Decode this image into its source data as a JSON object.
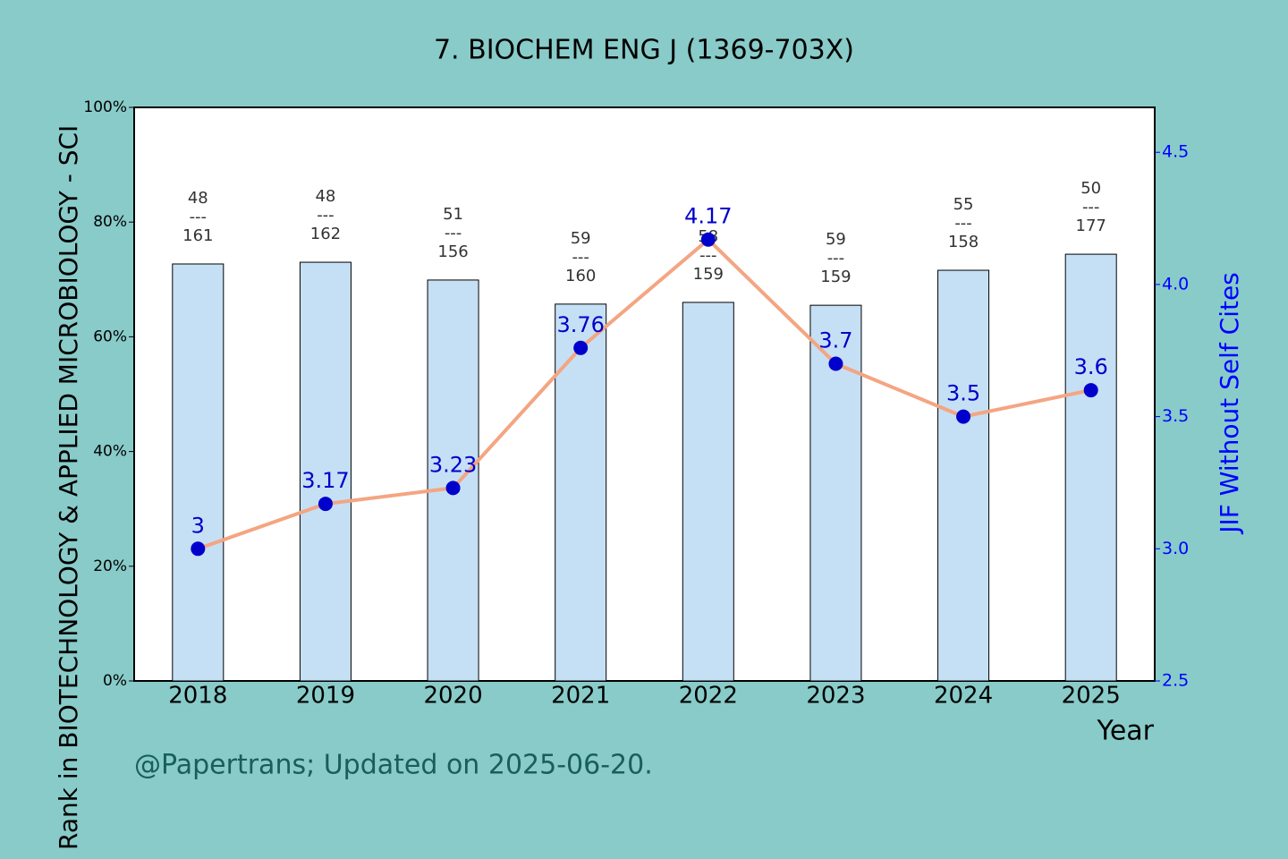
{
  "chart_data": {
    "type": "bar_line",
    "title": "7. BIOCHEM ENG J (1369-703X)",
    "y_label": "Rank in BIOTECHNOLOGY & APPLIED MICROBIOLOGY - SCI",
    "y2_label": "JIF Without Self Cites",
    "x_label": "Year",
    "footer": "@Papertrans; Updated on 2025-06-20.",
    "categories": [
      "2018",
      "2019",
      "2020",
      "2021",
      "2022",
      "2023",
      "2024",
      "2025"
    ],
    "series": [
      {
        "color": "#c5e0f5",
        "values": [
          72.7,
          73.0,
          69.9,
          65.7,
          66.0,
          65.5,
          71.6,
          74.4
        ],
        "ranks": [
          48,
          48,
          51,
          59,
          58,
          59,
          55,
          50
        ],
        "totals": [
          161,
          162,
          156,
          160,
          159,
          159,
          158,
          177
        ]
      },
      {
        "color": "#f4a582",
        "axis": "y2",
        "values": [
          3,
          3.17,
          3.23,
          3.76,
          4.17,
          3.7,
          3.5,
          3.6
        ]
      }
    ],
    "ylim": [
      0,
      100
    ],
    "yticks": [
      {
        "value": 0,
        "label": "0%"
      },
      {
        "value": 20,
        "label": "20%"
      },
      {
        "value": 40,
        "label": "40%"
      },
      {
        "value": 60,
        "label": "60%"
      },
      {
        "value": 80,
        "label": "80%"
      },
      {
        "value": 100,
        "label": "100%"
      }
    ],
    "y2lim": [
      2.5,
      4.67
    ],
    "y2ticks": [
      2.5,
      {
        "value": 3,
        "label": "3.0"
      },
      3.5,
      {
        "value": 4,
        "label": "4.0"
      },
      4.5
    ]
  }
}
